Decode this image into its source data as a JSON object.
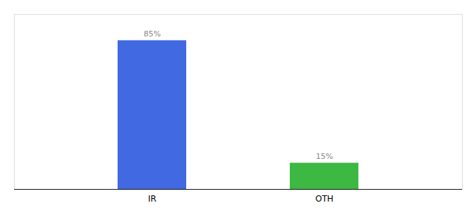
{
  "chart_data": {
    "type": "bar",
    "categories": [
      "IR",
      "OTH"
    ],
    "values": [
      85,
      15
    ],
    "value_labels": [
      "85%",
      "15%"
    ],
    "colors": [
      "#4169e1",
      "#3cb843"
    ],
    "ylim": [
      0,
      100
    ],
    "data_labels": true,
    "tick_labels": "x",
    "grid": false
  }
}
